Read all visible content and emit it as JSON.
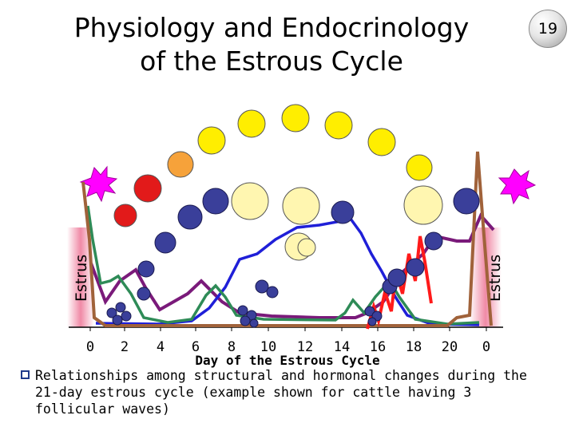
{
  "slide": {
    "title_line1": "Physiology and Endocrinology",
    "title_line2": "of the Estrous Cycle",
    "slide_number": "19",
    "caption": "Relationships among structural and hormonal changes during the 21-day estrous cycle (example shown for cattle having 3 follicular waves)"
  },
  "diagram": {
    "x_axis_label": "Day of the Estrous Cycle",
    "x_ticks": [
      "0",
      "2",
      "4",
      "6",
      "8",
      "10",
      "12",
      "14",
      "16",
      "18",
      "20",
      "0"
    ],
    "estrus_label_left": "Estrus",
    "estrus_label_right": "Estrus",
    "colors": {
      "estrus_band": "#f08aa6",
      "follicle": "#3a3f9a",
      "corpus_luteum_early": "#e21a1a",
      "corpus_luteum_mid": "#ffee00",
      "corpus_luteum_late": "#fff6b0",
      "ovulation_star": "#ff00ff",
      "progesterone": "#1f1fd8",
      "estradiol": "#2e8b57",
      "inhibin_fsh": "#7a1a7a",
      "lh": "#a0623a",
      "pgf_pulses": "#ff1a1a"
    }
  }
}
